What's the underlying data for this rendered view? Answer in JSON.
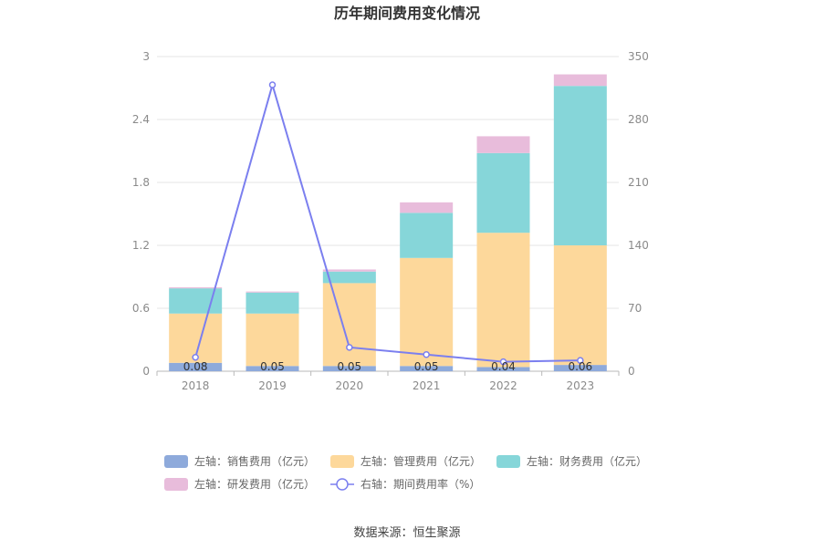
{
  "chart_data": {
    "type": "bar",
    "title": "历年期间费用变化情况",
    "categories": [
      "2018",
      "2019",
      "2020",
      "2021",
      "2022",
      "2023"
    ],
    "left_axis": {
      "ylim": [
        0,
        3
      ],
      "ticks": [
        "0",
        "0.6",
        "1.2",
        "1.8",
        "2.4",
        "3"
      ]
    },
    "right_axis": {
      "ylim": [
        0,
        350
      ],
      "ticks": [
        "0",
        "70",
        "140",
        "210",
        "280",
        "350"
      ]
    },
    "stacked": true,
    "series": [
      {
        "name": "左轴：销售费用（亿元）",
        "axis": "left",
        "color": "#8eaadb",
        "values": [
          0.08,
          0.05,
          0.05,
          0.05,
          0.04,
          0.06
        ]
      },
      {
        "name": "左轴：管理费用（亿元）",
        "axis": "left",
        "color": "#fdd89b",
        "values": [
          0.47,
          0.5,
          0.79,
          1.03,
          1.28,
          1.14
        ]
      },
      {
        "name": "左轴：财务费用（亿元）",
        "axis": "left",
        "color": "#86d6d9",
        "values": [
          0.24,
          0.2,
          0.11,
          0.43,
          0.76,
          1.52
        ]
      },
      {
        "name": "左轴：研发费用（亿元）",
        "axis": "left",
        "color": "#e8bcdb",
        "values": [
          0.01,
          0.01,
          0.02,
          0.1,
          0.16,
          0.11
        ]
      },
      {
        "name": "右轴：期间费用率（%）",
        "axis": "right",
        "type": "line",
        "color": "#7b7fef",
        "values": [
          15.5,
          318.5,
          26.5,
          18.5,
          10.5,
          12.0
        ]
      }
    ],
    "data_labels": [
      "0.08",
      "0.05",
      "0.05",
      "0.05",
      "0.04",
      "0.06"
    ],
    "legend_position": "bottom",
    "grid": true
  },
  "source": "数据来源：恒生聚源"
}
